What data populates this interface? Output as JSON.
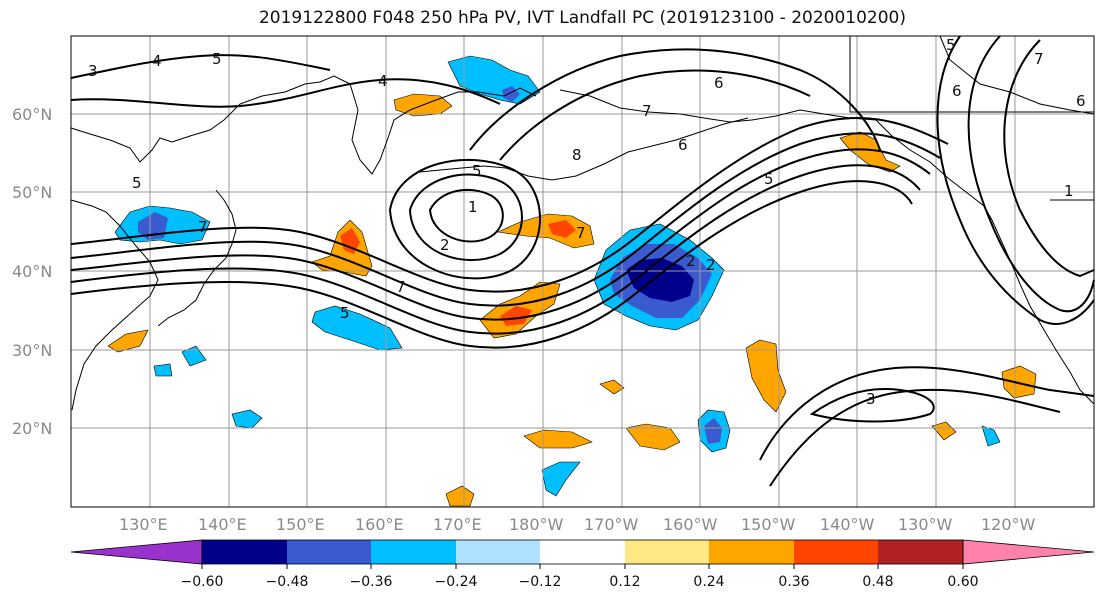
{
  "title": "2019122800 F048 250 hPa PV, IVT Landfall PC (2019123100 - 2020010200)",
  "map": {
    "lat_labels": [
      "60°N",
      "50°N",
      "40°N",
      "30°N",
      "20°N"
    ],
    "lon_labels": [
      "130°E",
      "140°E",
      "150°E",
      "160°E",
      "170°E",
      "180°W",
      "170°W",
      "160°W",
      "150°W",
      "140°W",
      "130°W",
      "120°W"
    ],
    "contour_labels": [
      "3",
      "4",
      "5",
      "4",
      "5",
      "6",
      "7",
      "7",
      "8",
      "6",
      "7",
      "5",
      "6",
      "1",
      "2",
      "5",
      "7",
      "7",
      "6",
      "2",
      "2",
      "5",
      "1",
      "5",
      "3"
    ],
    "fill_anomalies": [
      {
        "name": "okhotsk-negative",
        "value": -0.36
      },
      {
        "name": "japan-negative",
        "value": -0.36
      },
      {
        "name": "central-pacific-negative-core",
        "value": -0.6
      },
      {
        "name": "dateline-positive",
        "value": 0.36
      },
      {
        "name": "nw-pacific-positive",
        "value": 0.36
      },
      {
        "name": "subtropical-positive",
        "value": 0.24
      },
      {
        "name": "hawaii-negative",
        "value": -0.48
      }
    ]
  },
  "colorbar": {
    "ticks": [
      "−0.60",
      "−0.48",
      "−0.36",
      "−0.24",
      "−0.12",
      "0.12",
      "0.24",
      "0.36",
      "0.48",
      "0.60"
    ],
    "colors": [
      "#9a32cd",
      "#00008b",
      "#3a5bd0",
      "#00bfff",
      "#b0e2ff",
      "#ffffff",
      "#ffe985",
      "#ffa500",
      "#ff4500",
      "#b22222",
      "#ff82ab"
    ]
  }
}
